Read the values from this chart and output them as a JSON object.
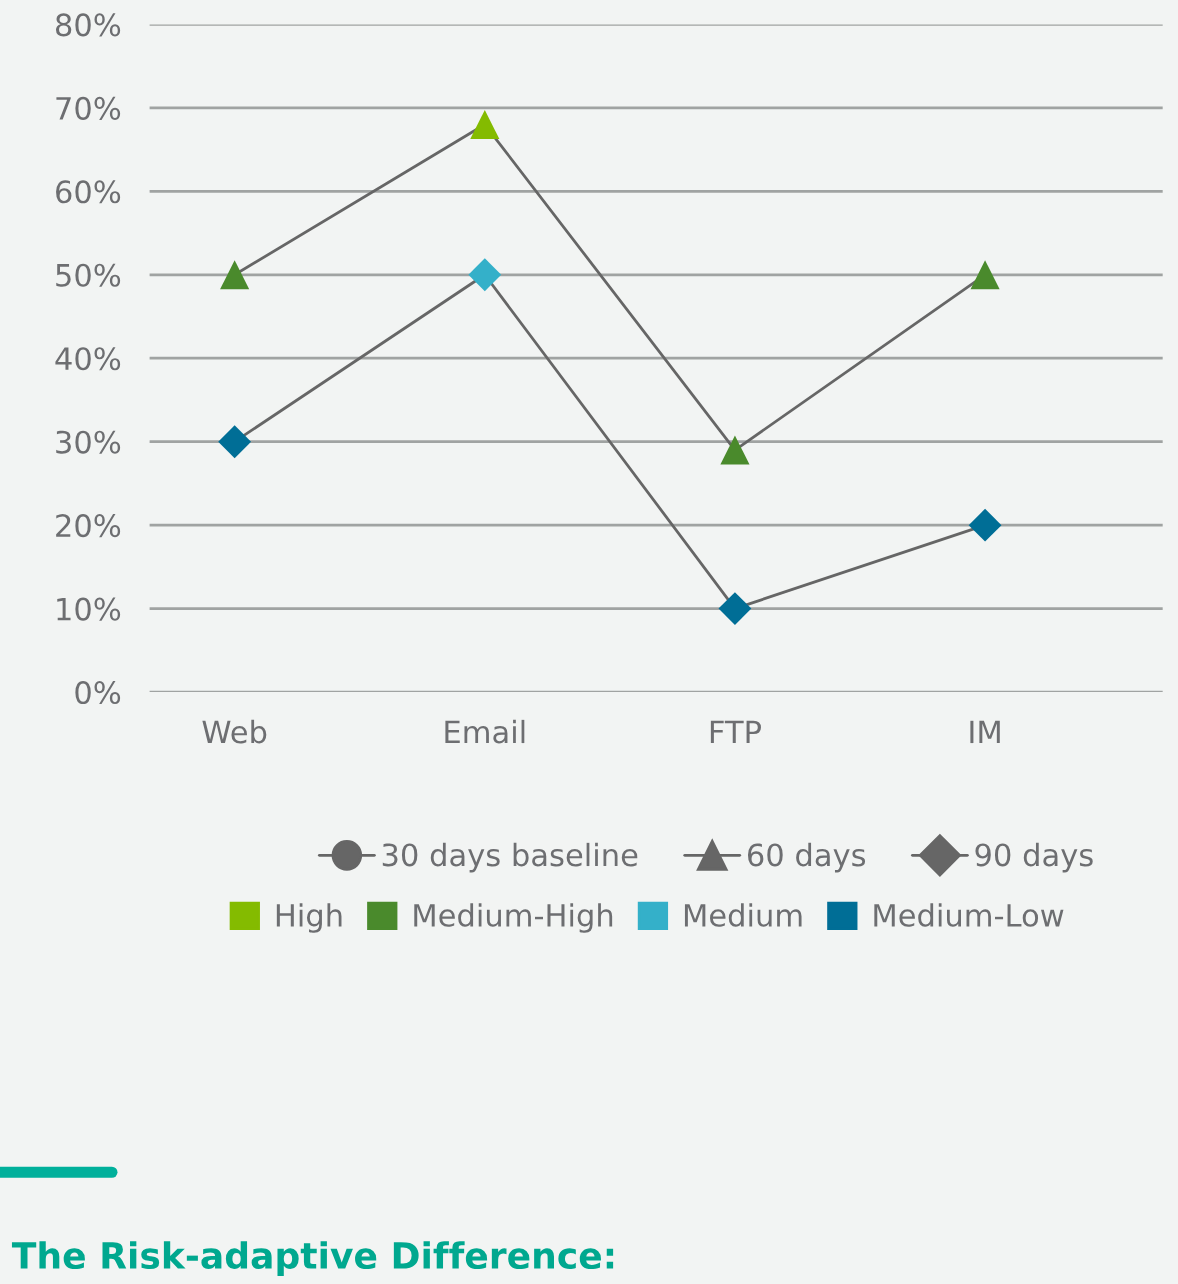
{
  "chart_data": {
    "type": "line",
    "categories": [
      "Web",
      "Email",
      "FTP",
      "IM"
    ],
    "series": [
      {
        "name": "30 days baseline",
        "color": "#666666",
        "marker": "circle",
        "values": [
          null,
          null,
          null,
          null
        ]
      },
      {
        "name": "60 days",
        "color": "#666666",
        "marker": "triangle",
        "values": [
          50,
          68,
          29,
          50
        ],
        "colors": [
          "#4a8a2c",
          "#84bb00",
          "#4a8a2c",
          "#4a8a2c"
        ]
      },
      {
        "name": "90 days",
        "color": "#666666",
        "marker": "diamond",
        "values": [
          30,
          50,
          10,
          20
        ],
        "colors": [
          "#006e96",
          "#34b0c9",
          "#006e96",
          "#006e96"
        ]
      },
      {
        "name": "High",
        "type": "bar",
        "color": "#84bb00",
        "values": [
          null,
          null,
          null,
          null
        ]
      },
      {
        "name": "Medium-High",
        "type": "bar",
        "color": "#4a8a2c",
        "values": [
          null,
          null,
          null,
          null
        ]
      },
      {
        "name": "Medium",
        "type": "bar",
        "color": "#34b0c9",
        "values": [
          null,
          null,
          null,
          null
        ]
      },
      {
        "name": "Medium-Low",
        "type": "bar",
        "color": "#006e96",
        "values": [
          null,
          null,
          null,
          null
        ]
      }
    ],
    "ylim": [
      0,
      80
    ],
    "yticks": [
      {
        "value": 0,
        "label": "0%"
      },
      {
        "value": 10,
        "label": "10%"
      },
      {
        "value": 20,
        "label": "20%"
      },
      {
        "value": 30,
        "label": "30%"
      },
      {
        "value": 40,
        "label": "40%"
      },
      {
        "value": 50,
        "label": "50%"
      },
      {
        "value": 60,
        "label": "60%"
      },
      {
        "value": 70,
        "label": "70%"
      },
      {
        "value": 80,
        "label": "80%"
      }
    ],
    "grid": "y",
    "legend": "bottom",
    "annotations": [
      "The Risk-adaptive Difference:"
    ]
  }
}
